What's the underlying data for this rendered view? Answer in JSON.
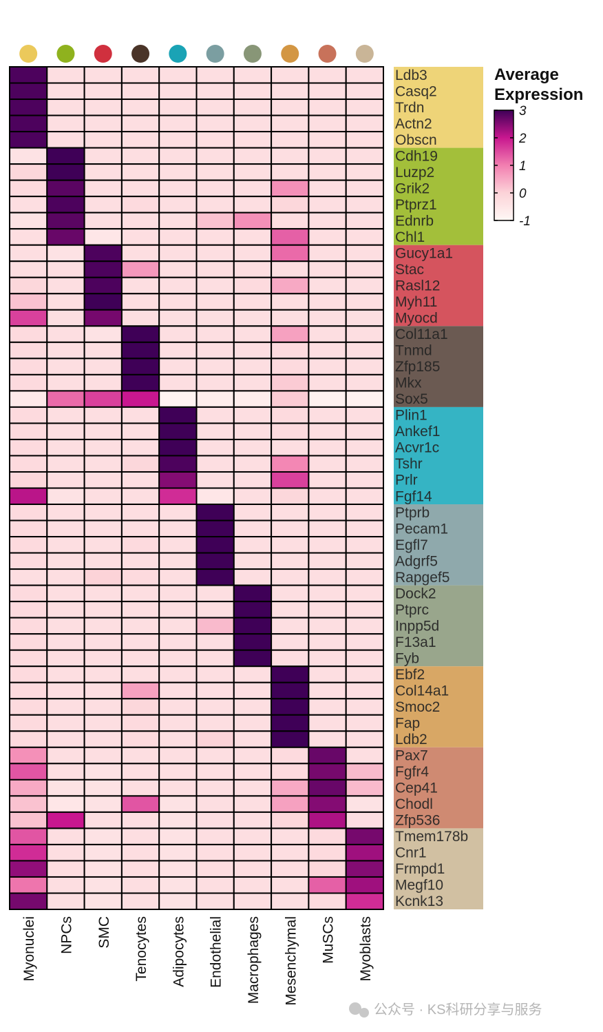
{
  "chart_data": {
    "type": "heatmap",
    "columns": [
      {
        "name": "Myonuclei",
        "dot_color": "#ebc95b",
        "band_color": "#eed478"
      },
      {
        "name": "NPCs",
        "dot_color": "#8fb21e",
        "band_color": "#a3bf3a"
      },
      {
        "name": "SMC",
        "dot_color": "#d0303e",
        "band_color": "#d5545e"
      },
      {
        "name": "Tenocytes",
        "dot_color": "#4a3428",
        "band_color": "#6b5a52"
      },
      {
        "name": "Adipocytes",
        "dot_color": "#1aa3b5",
        "band_color": "#35b4c4"
      },
      {
        "name": "Endothelial",
        "dot_color": "#7b9ea1",
        "band_color": "#8fa9ac"
      },
      {
        "name": "Macrophages",
        "dot_color": "#889677",
        "band_color": "#99a68c"
      },
      {
        "name": "Mesenchymal",
        "dot_color": "#d39643",
        "band_color": "#d8a765"
      },
      {
        "name": "MuSCs",
        "dot_color": "#c8725a",
        "band_color": "#cf8a72"
      },
      {
        "name": "Myoblasts",
        "dot_color": "#c9b597",
        "band_color": "#d1c0a2"
      }
    ],
    "row_groups": [
      {
        "rows": [
          "Ldb3",
          "Casq2",
          "Trdn",
          "Actn2",
          "Obscn"
        ],
        "values": [
          [
            2.9,
            -0.3,
            -0.3,
            -0.3,
            -0.3,
            -0.3,
            -0.3,
            -0.3,
            -0.3,
            -0.3
          ],
          [
            2.9,
            -0.3,
            -0.3,
            -0.3,
            -0.3,
            -0.3,
            -0.3,
            -0.3,
            -0.3,
            -0.3
          ],
          [
            2.9,
            -0.3,
            -0.3,
            -0.3,
            -0.3,
            -0.3,
            -0.3,
            -0.3,
            -0.3,
            -0.3
          ],
          [
            2.9,
            -0.3,
            -0.3,
            -0.3,
            -0.3,
            -0.3,
            -0.3,
            -0.3,
            -0.3,
            -0.3
          ],
          [
            2.9,
            -0.3,
            -0.3,
            -0.3,
            -0.3,
            -0.3,
            -0.3,
            -0.3,
            -0.3,
            -0.3
          ]
        ]
      },
      {
        "rows": [
          "Cdh19",
          "Luzp2",
          "Grik2",
          "Ptprz1",
          "Ednrb",
          "Chl1"
        ],
        "values": [
          [
            -0.4,
            3,
            -0.3,
            -0.3,
            -0.3,
            -0.3,
            -0.3,
            -0.3,
            -0.3,
            -0.3
          ],
          [
            -0.1,
            3,
            -0.3,
            -0.3,
            -0.3,
            -0.3,
            -0.3,
            -0.3,
            -0.3,
            -0.3
          ],
          [
            -0.2,
            2.8,
            -0.3,
            -0.3,
            -0.3,
            -0.3,
            -0.3,
            0.8,
            -0.3,
            -0.3
          ],
          [
            -0.3,
            2.9,
            -0.3,
            -0.2,
            -0.3,
            -0.3,
            -0.3,
            -0.1,
            -0.3,
            -0.3
          ],
          [
            -0.4,
            2.8,
            -0.3,
            -0.3,
            -0.3,
            0.2,
            0.8,
            -0.3,
            -0.3,
            -0.3
          ],
          [
            -0.3,
            2.7,
            -0.5,
            -0.3,
            -0.3,
            -0.3,
            -0.3,
            1.3,
            -0.3,
            -0.3
          ]
        ]
      },
      {
        "rows": [
          "Gucy1a1",
          "Stac",
          "Rasl12",
          "Myh11",
          "Myocd"
        ],
        "values": [
          [
            -0.3,
            -0.4,
            2.9,
            -0.3,
            -0.3,
            -0.3,
            -0.3,
            1.2,
            -0.3,
            -0.3
          ],
          [
            -0.3,
            -0.3,
            2.9,
            0.7,
            -0.3,
            -0.3,
            -0.3,
            -0.3,
            -0.3,
            -0.3
          ],
          [
            -0.1,
            -0.3,
            2.9,
            -0.3,
            -0.3,
            -0.3,
            -0.2,
            0.5,
            -0.3,
            -0.3
          ],
          [
            0.2,
            -0.3,
            3,
            -0.3,
            -0.3,
            -0.3,
            -0.3,
            -0.3,
            -0.3,
            -0.3
          ],
          [
            1.6,
            -0.3,
            2.6,
            -0.3,
            -0.3,
            -0.3,
            -0.3,
            -0.3,
            -0.3,
            -0.3
          ]
        ]
      },
      {
        "rows": [
          "Col11a1",
          "Tnmd",
          "Zfp185",
          "Mkx",
          "Sox5"
        ],
        "values": [
          [
            -0.2,
            -0.3,
            -0.4,
            3,
            -0.3,
            -0.3,
            -0.3,
            0.6,
            -0.3,
            -0.3
          ],
          [
            -0.2,
            -0.3,
            -0.3,
            3,
            -0.3,
            -0.3,
            -0.3,
            -0.2,
            -0.3,
            -0.3
          ],
          [
            -0.2,
            -0.3,
            -0.3,
            3,
            -0.3,
            -0.3,
            -0.3,
            -0.2,
            -0.3,
            -0.3
          ],
          [
            -0.2,
            -0.3,
            -0.3,
            3,
            -0.3,
            -0.3,
            -0.3,
            0.1,
            -0.3,
            -0.3
          ],
          [
            -0.6,
            1.2,
            1.6,
            2.0,
            -0.9,
            -0.7,
            -0.7,
            0.1,
            -0.8,
            -0.8
          ]
        ]
      },
      {
        "rows": [
          "Plin1",
          "Ankef1",
          "Acvr1c",
          "Tshr",
          "Prlr",
          "Fgf14"
        ],
        "values": [
          [
            -0.2,
            -0.3,
            -0.3,
            -0.3,
            3,
            -0.3,
            -0.3,
            -0.2,
            -0.3,
            -0.3
          ],
          [
            -0.2,
            -0.3,
            -0.3,
            -0.3,
            3,
            -0.3,
            -0.3,
            -0.2,
            -0.3,
            -0.3
          ],
          [
            -0.2,
            -0.3,
            -0.3,
            -0.3,
            3,
            -0.3,
            -0.3,
            -0.3,
            -0.3,
            -0.3
          ],
          [
            -0.2,
            -0.3,
            -0.3,
            -0.1,
            2.9,
            -0.3,
            -0.3,
            0.9,
            -0.3,
            -0.3
          ],
          [
            -0.1,
            -0.3,
            -0.3,
            -0.3,
            2.5,
            -0.3,
            -0.3,
            1.6,
            -0.3,
            -0.3
          ],
          [
            2.1,
            -0.4,
            -0.3,
            -0.3,
            1.8,
            -0.5,
            -0.3,
            -0.1,
            -0.3,
            -0.3
          ]
        ]
      },
      {
        "rows": [
          "Ptprb",
          "Pecam1",
          "Egfl7",
          "Adgrf5",
          "Rapgef5"
        ],
        "values": [
          [
            -0.2,
            -0.3,
            -0.3,
            -0.3,
            -0.3,
            3,
            -0.3,
            -0.3,
            -0.3,
            -0.3
          ],
          [
            -0.2,
            -0.3,
            -0.3,
            -0.3,
            -0.3,
            3,
            -0.3,
            -0.3,
            -0.3,
            -0.3
          ],
          [
            -0.2,
            -0.3,
            -0.3,
            -0.2,
            -0.3,
            3,
            -0.3,
            -0.3,
            -0.3,
            -0.3
          ],
          [
            -0.2,
            -0.3,
            -0.3,
            -0.3,
            -0.3,
            3,
            -0.3,
            -0.3,
            -0.3,
            -0.3
          ],
          [
            -0.3,
            -0.3,
            0,
            -0.2,
            -0.3,
            3,
            -0.3,
            -0.3,
            -0.3,
            -0.3
          ]
        ]
      },
      {
        "rows": [
          "Dock2",
          "Ptprc",
          "Inpp5d",
          "F13a1",
          "Fyb"
        ],
        "values": [
          [
            -0.2,
            -0.3,
            -0.3,
            -0.3,
            -0.3,
            -0.3,
            3,
            -0.3,
            -0.3,
            -0.3
          ],
          [
            -0.2,
            -0.3,
            -0.3,
            -0.3,
            -0.3,
            -0.3,
            3,
            -0.3,
            -0.3,
            -0.3
          ],
          [
            -0.2,
            -0.3,
            -0.3,
            -0.3,
            -0.3,
            0.3,
            3,
            -0.3,
            -0.3,
            -0.3
          ],
          [
            -0.2,
            -0.3,
            -0.3,
            -0.3,
            -0.3,
            -0.3,
            3,
            -0.3,
            -0.3,
            -0.3
          ],
          [
            -0.2,
            -0.3,
            -0.3,
            -0.3,
            -0.3,
            -0.3,
            3,
            -0.3,
            -0.3,
            -0.3
          ]
        ]
      },
      {
        "rows": [
          "Ebf2",
          "Col14a1",
          "Smoc2",
          "Fap",
          "Ldb2"
        ],
        "values": [
          [
            -0.2,
            -0.3,
            -0.3,
            -0.3,
            -0.3,
            -0.3,
            -0.3,
            3,
            -0.3,
            -0.3
          ],
          [
            -0.2,
            -0.3,
            -0.3,
            0.6,
            -0.3,
            -0.3,
            -0.3,
            3,
            -0.3,
            -0.3
          ],
          [
            -0.2,
            -0.3,
            -0.3,
            -0.1,
            -0.3,
            -0.3,
            -0.3,
            3,
            -0.3,
            -0.3
          ],
          [
            -0.2,
            -0.3,
            -0.3,
            -0.2,
            -0.3,
            -0.3,
            -0.3,
            3,
            -0.3,
            -0.3
          ],
          [
            -0.2,
            -0.3,
            -0.3,
            -0.2,
            -0.3,
            0,
            -0.3,
            3,
            -0.3,
            -0.3
          ]
        ]
      },
      {
        "rows": [
          "Pax7",
          "Fgfr4",
          "Cep41",
          "Chodl",
          "Zfp536"
        ],
        "values": [
          [
            0.8,
            -0.3,
            -0.3,
            -0.3,
            -0.3,
            -0.3,
            -0.3,
            -0.2,
            2.7,
            -0.3
          ],
          [
            1.4,
            -0.3,
            -0.4,
            -0.3,
            -0.3,
            -0.3,
            -0.3,
            -0.2,
            2.6,
            0.3
          ],
          [
            0.5,
            -0.4,
            -0.4,
            -0.3,
            -0.3,
            -0.3,
            -0.3,
            0.5,
            2.7,
            0.3
          ],
          [
            0.2,
            -0.5,
            -0.4,
            1.4,
            -0.4,
            -0.3,
            -0.3,
            0.6,
            2.5,
            -0.4
          ],
          [
            0.2,
            2.0,
            -0.3,
            -0.3,
            -0.4,
            -0.3,
            -0.3,
            -0.1,
            2.2,
            -0.3
          ]
        ]
      },
      {
        "rows": [
          "Tmem178b",
          "Cnr1",
          "Frmpd1",
          "Megf10",
          "Kcnk13"
        ],
        "values": [
          [
            1.4,
            -0.3,
            -0.4,
            -0.3,
            -0.4,
            -0.3,
            -0.3,
            -0.3,
            -0.2,
            2.6
          ],
          [
            1.8,
            -0.3,
            -0.4,
            -0.3,
            -0.4,
            -0.3,
            -0.3,
            -0.3,
            -0.2,
            2.3
          ],
          [
            2.4,
            -0.3,
            -0.4,
            -0.3,
            -0.4,
            -0.3,
            -0.3,
            -0.3,
            -0.1,
            2.5
          ],
          [
            1.1,
            -0.3,
            -0.4,
            -0.3,
            -0.4,
            -0.3,
            -0.3,
            -0.3,
            1.3,
            2.3
          ],
          [
            2.6,
            -0.3,
            -0.4,
            -0.3,
            -0.4,
            -0.3,
            -0.3,
            -0.3,
            -0.2,
            1.8
          ]
        ]
      }
    ],
    "colorbar": {
      "title": "Average Expression",
      "lim": [
        -1,
        3
      ],
      "ticks": [
        3,
        2,
        1,
        0,
        -1
      ],
      "colors": [
        "#fff8f5",
        "#fcd3d8",
        "#f27fb0",
        "#c8178f",
        "#3f0057"
      ]
    },
    "watermark": "公众号 · KS科研分享与服务"
  }
}
